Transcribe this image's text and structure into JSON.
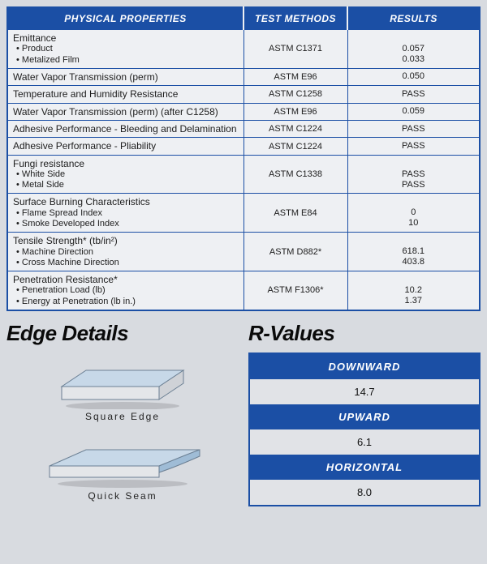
{
  "colors": {
    "header_bg": "#1b4fa5",
    "header_fg": "#ffffff",
    "table_bg": "#eef0f3",
    "page_bg": "#d8dbe0",
    "border": "#1b4fa5",
    "text": "#1d1d1d"
  },
  "properties_table": {
    "columns": [
      "PHYSICAL PROPERTIES",
      "TEST METHODS",
      "RESULTS"
    ],
    "rows": [
      {
        "title": "Emittance",
        "subs": [
          "Product",
          "Metalized Film"
        ],
        "method": "ASTM C1371",
        "results": [
          "0.057",
          "0.033"
        ]
      },
      {
        "title": "Water Vapor Transmission (perm)",
        "subs": [],
        "method": "ASTM E96",
        "results": [
          "0.050"
        ]
      },
      {
        "title": "Temperature and Humidity Resistance",
        "subs": [],
        "method": "ASTM C1258",
        "results": [
          "PASS"
        ]
      },
      {
        "title": "Water Vapor Transmission (perm) (after C1258)",
        "subs": [],
        "method": "ASTM E96",
        "results": [
          "0.059"
        ]
      },
      {
        "title": "Adhesive Performance - Bleeding and Delamination",
        "subs": [],
        "method": "ASTM C1224",
        "results": [
          "PASS"
        ]
      },
      {
        "title": "Adhesive Performance - Pliability",
        "subs": [],
        "method": "ASTM C1224",
        "results": [
          "PASS"
        ]
      },
      {
        "title": "Fungi resistance",
        "subs": [
          "White Side",
          "Metal Side"
        ],
        "method": "ASTM C1338",
        "results": [
          "PASS",
          "PASS"
        ]
      },
      {
        "title": "Surface Burning Characteristics",
        "subs": [
          "Flame Spread Index",
          "Smoke Developed Index"
        ],
        "method": "ASTM E84",
        "results": [
          "0",
          "10"
        ]
      },
      {
        "title": "Tensile Strength* (tb/in²)",
        "subs": [
          "Machine Direction",
          "Cross Machine Direction"
        ],
        "method": "ASTM D882*",
        "results": [
          "618.1",
          "403.8"
        ]
      },
      {
        "title": "Penetration Resistance*",
        "subs": [
          "Penetration Load (lb)",
          "Energy at Penetration (lb in.)"
        ],
        "method": "ASTM F1306*",
        "results": [
          "10.2",
          "1.37"
        ]
      }
    ]
  },
  "edge_details": {
    "heading": "Edge Details",
    "items": [
      {
        "caption": "Square Edge"
      },
      {
        "caption": "Quick Seam"
      }
    ]
  },
  "r_values": {
    "heading": "R-Values",
    "entries": [
      {
        "label": "DOWNWARD",
        "value": "14.7"
      },
      {
        "label": "UPWARD",
        "value": "6.1"
      },
      {
        "label": "HORIZONTAL",
        "value": "8.0"
      }
    ]
  }
}
